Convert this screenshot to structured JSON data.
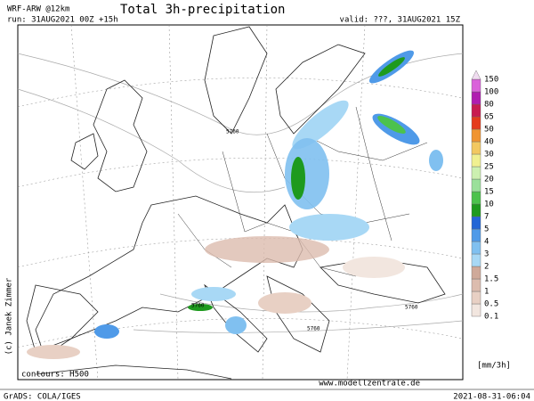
{
  "header": {
    "model": "WRF-ARW @12km",
    "title": "Total 3h-precipitation",
    "run": "run: 31AUG2021 00Z +15h",
    "valid": "valid: ???, 31AUG2021 15Z"
  },
  "map": {
    "credit": "(c) Janek Zimmer",
    "contours": "contours: H500",
    "website": "www.modellzentrale.de",
    "contour_labels": [
      "5760",
      "5760",
      "5760",
      "5760"
    ]
  },
  "legend": {
    "labels": [
      "0.1",
      "0.5",
      "1",
      "1.5",
      "2",
      "3",
      "4",
      "5",
      "7",
      "10",
      "15",
      "20",
      "25",
      "30",
      "40",
      "50",
      "65",
      "80",
      "100",
      "150"
    ],
    "colors": [
      "#f2e6df",
      "#e8d0c4",
      "#dcbcae",
      "#cfa999",
      "#a8d8f5",
      "#80c0f0",
      "#4f9ae8",
      "#2266d6",
      "#1e9a1e",
      "#4cc24c",
      "#9ae09a",
      "#ccf0b0",
      "#f0f090",
      "#f2c860",
      "#f09430",
      "#e43c1c",
      "#c81c50",
      "#b01cb0",
      "#da62da",
      "#f0dcf0"
    ],
    "unit": "[mm/3h]"
  },
  "footer": {
    "software": "GrADS: COLA/IGES",
    "timestamp": "2021-08-31-06:04"
  }
}
